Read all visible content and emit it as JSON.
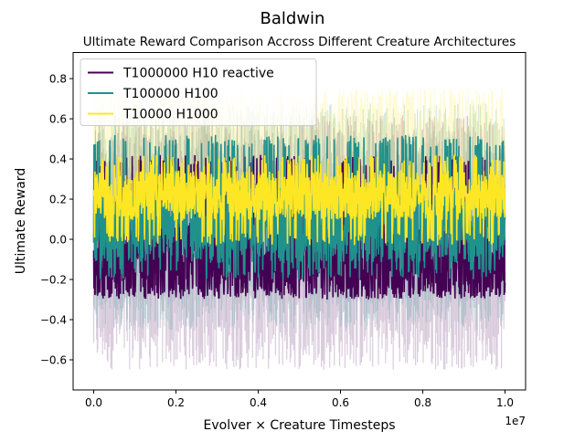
{
  "figure": {
    "suptitle": "Baldwin"
  },
  "chart_data": {
    "type": "line",
    "title": "Ultimate Reward Comparison Accross Different Creature Architectures",
    "xlabel": "Evolver × Creature Timesteps",
    "ylabel": "Ultimate Reward",
    "x_offset_label": "1e7",
    "xlim": [
      -500000,
      10500000
    ],
    "ylim": [
      -0.75,
      0.93
    ],
    "x_ticks": [
      0,
      2000000,
      4000000,
      6000000,
      8000000,
      10000000
    ],
    "x_tick_labels": [
      "0.0",
      "0.2",
      "0.4",
      "0.6",
      "0.8",
      "1.0"
    ],
    "y_ticks": [
      -0.6,
      -0.4,
      -0.2,
      0.0,
      0.2,
      0.4,
      0.6,
      0.8
    ],
    "y_tick_labels": [
      "−0.6",
      "−0.4",
      "−0.2",
      "0.0",
      "0.2",
      "0.4",
      "0.6",
      "0.8"
    ],
    "grid": false,
    "legend_position": "upper-left",
    "x_range": [
      0,
      10000000
    ],
    "series": [
      {
        "name": "T1000000 H10 reactive",
        "color": "#440154",
        "mean": -0.1,
        "line_range": [
          -0.3,
          0.42
        ],
        "shade_range": [
          -0.65,
          0.62
        ]
      },
      {
        "name": "T100000 H100",
        "color": "#21918c",
        "mean": 0.08,
        "line_range": [
          -0.2,
          0.52
        ],
        "shade_range": [
          -0.45,
          0.68
        ]
      },
      {
        "name": "T10000 H1000",
        "color": "#fde725",
        "mean": 0.22,
        "line_range": [
          -0.03,
          0.42
        ],
        "shade_range": [
          0.05,
          0.75
        ]
      }
    ]
  }
}
